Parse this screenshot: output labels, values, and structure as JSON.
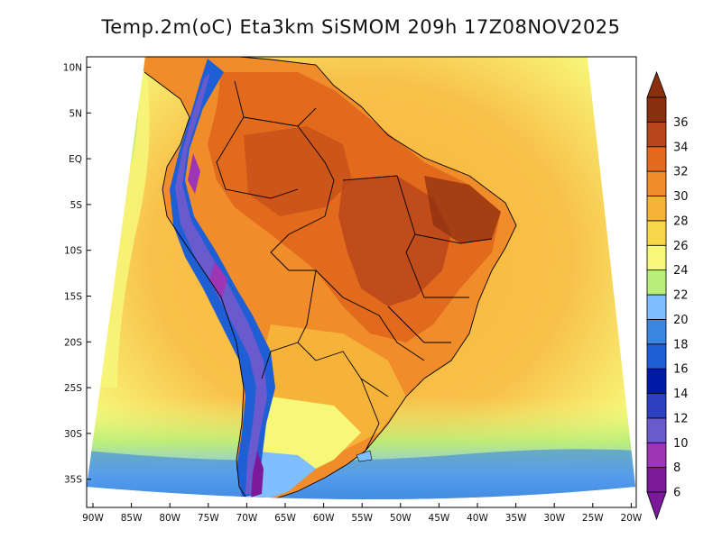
{
  "title": "Temp.2m(oC) Eta3km SiSMOM 209h 17Z08NOV2025",
  "y_axis": {
    "labels": [
      "10N",
      "5N",
      "EQ",
      "5S",
      "10S",
      "15S",
      "20S",
      "25S",
      "30S",
      "35S"
    ]
  },
  "x_axis": {
    "labels": [
      "90W",
      "85W",
      "80W",
      "75W",
      "70W",
      "65W",
      "60W",
      "55W",
      "50W",
      "45W",
      "40W",
      "35W",
      "30W",
      "25W",
      "20W"
    ]
  },
  "colorbar": {
    "labels": [
      "6",
      "8",
      "10",
      "12",
      "14",
      "16",
      "18",
      "20",
      "22",
      "24",
      "26",
      "28",
      "30",
      "32",
      "34",
      "36"
    ],
    "colors": [
      "#7a1a9a",
      "#9e35b5",
      "#6a5acd",
      "#2b3fbf",
      "#0019a8",
      "#1f5fd6",
      "#3a86e0",
      "#7fbfff",
      "#b8ee7a",
      "#f7f77a",
      "#f8d84a",
      "#f6b33a",
      "#f08c2a",
      "#e26a1c",
      "#b9461a",
      "#8a2e10"
    ]
  }
}
